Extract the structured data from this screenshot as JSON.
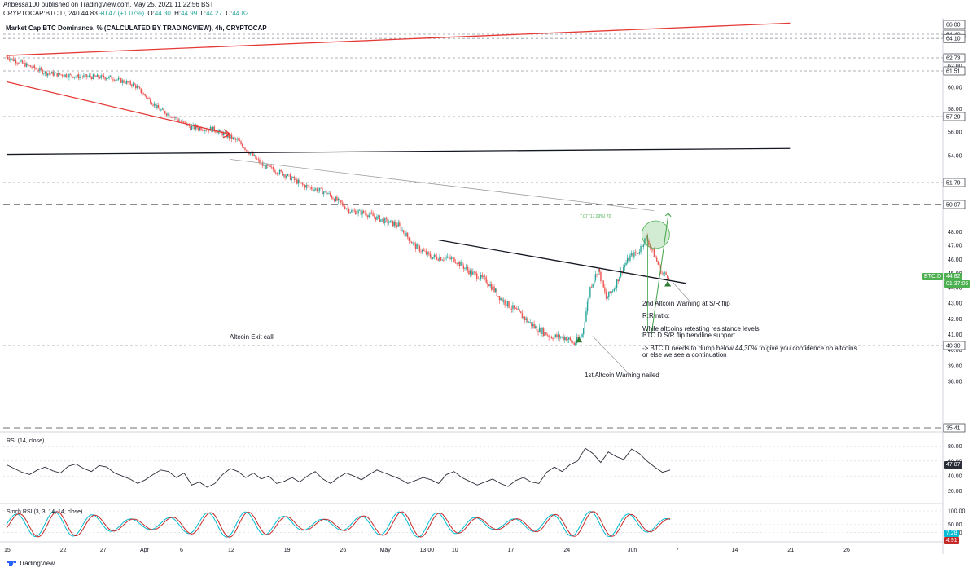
{
  "header": {
    "publisher_line": "Anbessa100 published on TradingView.com, May 25, 2021 11:22:56 BST",
    "symbol": "CRYPTOCAP:BTC.D, 240",
    "last": "44.83",
    "change": "+0.47 (+1.07%)",
    "open_label": "O:",
    "open": "44.30",
    "high_label": "H:",
    "high": "44.99",
    "low_label": "L:",
    "low": "44.27",
    "close_label": "C:",
    "close": "44.82"
  },
  "main_title": "Market Cap BTC Dominance, % (CALCULATED BY TRADINGVIEW), 4h, CRYPTOCAP",
  "annotations": {
    "exit_call": "Altcoin Exit call",
    "warning1": "1st Altcoin Warning nailed",
    "warning2": "2nd Altcoin Warning at S/R flip",
    "rr": "R:R ratio:",
    "retest1": "While altcoins retesting resistance levels",
    "retest2": "BTC.D S/R flip trendline support",
    "dump1": "-> BTC.D needs to dump below 44,30% to give you confidence on altcoins",
    "dump2": "or else we see a continuation",
    "measure": "7.07 (17.09%) 70"
  },
  "price_tags": {
    "symbol": "BTC.D",
    "last": "44.82",
    "countdown": "01:37:06",
    "rsi_last": "47.87",
    "stoch_k": "7.28",
    "stoch_d": "4.91"
  },
  "pane_labels": {
    "rsi": "RSI (14, close)",
    "stoch": "Stoch RSI (3, 3, 14, 14, close)"
  },
  "brand": "TradingView",
  "colors": {
    "up": "#26a69a",
    "down": "#ef5350",
    "trend_red": "#e53935",
    "green_arrow": "#43a047",
    "rsi_line": "#2a2e39",
    "stoch_k": "#00bcd4",
    "stoch_d": "#c62828",
    "tag_bg": "#4caf50"
  },
  "chart_data": [
    {
      "type": "candlestick",
      "title": "Market Cap BTC Dominance, % (CALCULATED BY TRADINGVIEW), 4h, CRYPTOCAP",
      "x_tick_labels": [
        "15",
        "22",
        "27",
        "Apr",
        "6",
        "12",
        "19",
        "26",
        "May",
        "13:00",
        "10",
        "17",
        "24",
        "Jun",
        "7",
        "14",
        "21",
        "26"
      ],
      "y_ticks": [
        38.0,
        39.0,
        40.0,
        41.0,
        42.0,
        43.0,
        44.0,
        45.0,
        46.0,
        47.0,
        48.0,
        50.0,
        52.0,
        54.0,
        56.0,
        58.0,
        60.0,
        62.0,
        64.0,
        66.0
      ],
      "price_labels": [
        66.0,
        64.4,
        64.1,
        62.73,
        61.51,
        57.29,
        51.79,
        50.07,
        44.82,
        40.3,
        35.41
      ],
      "horizontal_levels": [
        64.4,
        64.1,
        62.73,
        61.51,
        57.29,
        51.79,
        50.07,
        40.3,
        35.41
      ],
      "close_path": [
        [
          15,
          62.8
        ],
        [
          20,
          61.3
        ],
        [
          24,
          61.0
        ],
        [
          28,
          60.9
        ],
        [
          31,
          60.2
        ],
        [
          34,
          58.0
        ],
        [
          38,
          56.4
        ],
        [
          41,
          56.2
        ],
        [
          44,
          55.2
        ],
        [
          47,
          53.2
        ],
        [
          50,
          52.4
        ],
        [
          52,
          51.6
        ],
        [
          55,
          51.0
        ],
        [
          58,
          49.6
        ],
        [
          60,
          49.4
        ],
        [
          62,
          48.9
        ],
        [
          64,
          48.5
        ],
        [
          66,
          47.0
        ],
        [
          68,
          46.2
        ],
        [
          71,
          46.0
        ],
        [
          73,
          45.1
        ],
        [
          75,
          44.5
        ],
        [
          77,
          43.2
        ],
        [
          79,
          42.4
        ],
        [
          81,
          41.5
        ],
        [
          83,
          40.9
        ],
        [
          85,
          40.8
        ],
        [
          86,
          40.4
        ],
        [
          87,
          41.0
        ],
        [
          88,
          44.0
        ],
        [
          89,
          45.3
        ],
        [
          90,
          43.3
        ],
        [
          91,
          44.0
        ],
        [
          92,
          45.3
        ],
        [
          93,
          46.2
        ],
        [
          94,
          46.5
        ],
        [
          95,
          47.6
        ],
        [
          96,
          46.3
        ],
        [
          97,
          45.0
        ],
        [
          98,
          44.82
        ]
      ],
      "trendlines": [
        {
          "from": [
            15,
            62.9
          ],
          "to": [
            113,
            66.2
          ],
          "color": "red"
        },
        {
          "from": [
            15,
            60.5
          ],
          "to": [
            43,
            55.8
          ],
          "color": "red",
          "arrow": true
        },
        {
          "from": [
            15,
            54.1
          ],
          "to": [
            113,
            54.6
          ],
          "color": "black"
        },
        {
          "from": [
            43,
            53.7
          ],
          "to": [
            96,
            49.6
          ],
          "color": "gray"
        },
        {
          "from": [
            69,
            47.4
          ],
          "to": [
            100,
            44.3
          ],
          "color": "black"
        }
      ],
      "measure": {
        "value": 7.07,
        "percent": 17.09
      }
    },
    {
      "type": "line",
      "name": "RSI (14, close)",
      "ylim": [
        12,
        88
      ],
      "y_ticks": [
        20.0,
        40.0,
        60.0,
        80.0
      ],
      "last": 47.87,
      "values": [
        55,
        50,
        45,
        42,
        48,
        52,
        47,
        44,
        53,
        56,
        50,
        46,
        54,
        52,
        44,
        40,
        36,
        30,
        35,
        42,
        48,
        46,
        38,
        44,
        28,
        32,
        25,
        30,
        42,
        50,
        46,
        38,
        44,
        36,
        40,
        30,
        33,
        38,
        32,
        40,
        46,
        36,
        30,
        38,
        44,
        40,
        35,
        42,
        48,
        44,
        40,
        36,
        30,
        34,
        38,
        35,
        30,
        42,
        46,
        38,
        33,
        28,
        32,
        36,
        30,
        26,
        34,
        38,
        32,
        30,
        45,
        52,
        46,
        55,
        60,
        77,
        70,
        58,
        72,
        66,
        62,
        76,
        70,
        60,
        52,
        45,
        48
      ]
    },
    {
      "type": "line",
      "name": "Stoch RSI (3, 3, 14, 14, close)",
      "ylim": [
        0,
        100
      ],
      "y_ticks": [
        20.0,
        50.0,
        100.0
      ],
      "k_last": 7.28,
      "d_last": 4.91
    }
  ]
}
